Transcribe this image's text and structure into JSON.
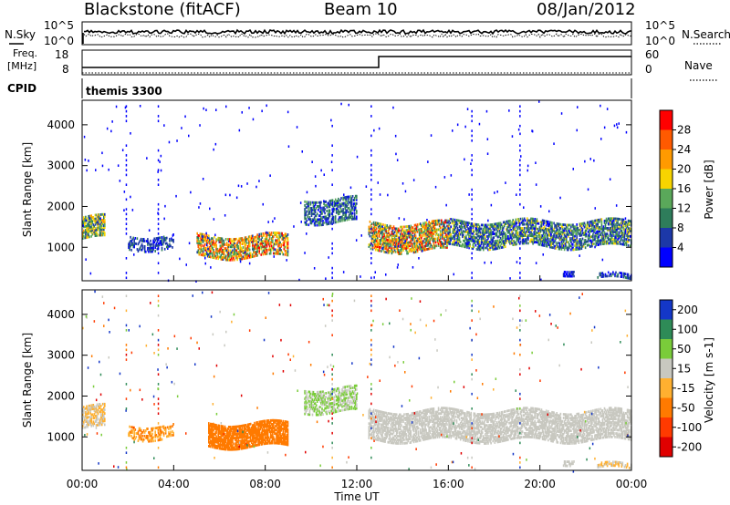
{
  "header": {
    "station": "Blackstone (fitACF)",
    "beam": "Beam 10",
    "date": "08/Jan/2012"
  },
  "top_panels": {
    "nsky_label": "N.Sky",
    "nsky_ticks": [
      "10^5",
      "10^0"
    ],
    "nsearch_label": "N.Search",
    "nsearch_ticks": [
      "10^5",
      "10^0"
    ],
    "freq_label_1": "Freq.",
    "freq_label_2": "[MHz]",
    "freq_ticks": [
      "18",
      "8"
    ],
    "nave_label": "Nave",
    "nave_ticks": [
      "60",
      "0"
    ],
    "cpid_label": "CPID",
    "cpid_value": "themis 3300"
  },
  "colors": {
    "power_scale": [
      "#0000ff",
      "#1c38a8",
      "#2e7d5b",
      "#5aa85a",
      "#f7d400",
      "#ff9a00",
      "#ff5a00",
      "#ff0000"
    ],
    "velocity_scale": [
      "#1437c8",
      "#2e8b57",
      "#7acc3a",
      "#c8c8c0",
      "#ffb030",
      "#ff7a00",
      "#ff3a00",
      "#e00000"
    ]
  },
  "chart_data": [
    {
      "type": "heatmap",
      "panel": "power",
      "ylabel": "Slant Range [km]",
      "ylim": [
        180,
        4600
      ],
      "y_ticks": [
        "4000",
        "3000",
        "2000",
        "1000"
      ],
      "colorbar_label": "Power [dB]",
      "colorbar_ticks": [
        "28",
        "24",
        "20",
        "16",
        "12",
        "8",
        "4"
      ],
      "bands": [
        {
          "t0": 0.0,
          "t1": 1.0,
          "r0": 1250,
          "r1": 1800,
          "cmin": 1,
          "cmax": 5,
          "d": 0.7
        },
        {
          "t0": 2.0,
          "t1": 4.0,
          "r0": 1000,
          "r1": 1350,
          "cmin": 0,
          "cmax": 2,
          "d": 0.4
        },
        {
          "t0": 5.0,
          "t1": 9.0,
          "r0": 800,
          "r1": 1350,
          "cmin": 1,
          "cmax": 7,
          "d": 0.6
        },
        {
          "t0": 9.7,
          "t1": 12.0,
          "r0": 1650,
          "r1": 2250,
          "cmin": 0,
          "cmax": 3,
          "d": 0.5
        },
        {
          "t0": 12.5,
          "t1": 16.0,
          "r0": 950,
          "r1": 1650,
          "cmin": 1,
          "cmax": 7,
          "d": 0.6
        },
        {
          "t0": 16.0,
          "t1": 24.0,
          "r0": 1050,
          "r1": 1700,
          "cmin": 0,
          "cmax": 4,
          "d": 0.6
        },
        {
          "t0": 21.0,
          "t1": 21.5,
          "r0": 400,
          "r1": 550,
          "cmin": 0,
          "cmax": 1,
          "d": 0.6
        },
        {
          "t0": 22.5,
          "t1": 24.0,
          "r0": 250,
          "r1": 380,
          "cmin": 0,
          "cmax": 2,
          "d": 0.5
        }
      ]
    },
    {
      "type": "heatmap",
      "panel": "velocity",
      "ylabel": "Slant Range [km]",
      "ylim": [
        180,
        4600
      ],
      "y_ticks": [
        "4000",
        "3000",
        "2000",
        "1000"
      ],
      "colorbar_label": "Velocity [m s-1]",
      "colorbar_ticks": [
        "200",
        "100",
        "50",
        "15",
        "-15",
        "-50",
        "-100",
        "-200"
      ],
      "bands": [
        {
          "t0": 0.0,
          "t1": 1.0,
          "r0": 1250,
          "r1": 1800,
          "cmin": 3,
          "cmax": 4,
          "d": 0.6
        },
        {
          "t0": 2.0,
          "t1": 4.0,
          "r0": 1000,
          "r1": 1350,
          "cmin": 4,
          "cmax": 5,
          "d": 0.4
        },
        {
          "t0": 5.5,
          "t1": 9.0,
          "r0": 800,
          "r1": 1400,
          "cmin": 5,
          "cmax": 5,
          "d": 0.8
        },
        {
          "t0": 9.7,
          "t1": 12.0,
          "r0": 1650,
          "r1": 2250,
          "cmin": 2,
          "cmax": 3,
          "d": 0.5
        },
        {
          "t0": 12.5,
          "t1": 24.0,
          "r0": 950,
          "r1": 1700,
          "cmin": 3,
          "cmax": 3,
          "d": 0.6
        },
        {
          "t0": 21.0,
          "t1": 21.5,
          "r0": 400,
          "r1": 550,
          "cmin": 3,
          "cmax": 3,
          "d": 0.6
        },
        {
          "t0": 22.5,
          "t1": 24.0,
          "r0": 250,
          "r1": 380,
          "cmin": 3,
          "cmax": 4,
          "d": 0.5
        }
      ]
    }
  ],
  "x_axis": {
    "label": "Time UT",
    "ticks": [
      "00:00",
      "04:00",
      "08:00",
      "12:00",
      "16:00",
      "20:00",
      "00:00"
    ]
  }
}
